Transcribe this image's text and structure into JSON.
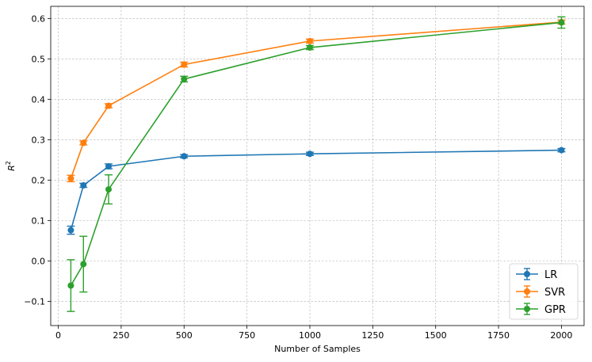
{
  "chart_data": {
    "type": "line",
    "title": "",
    "xlabel": "Number of Samples",
    "ylabel": "R",
    "ylabel_superscript": "2",
    "xlim": [
      -30,
      2090
    ],
    "ylim": [
      -0.16,
      0.63
    ],
    "grid": true,
    "legend_position": "lower-right",
    "x_ticks": [
      0,
      250,
      500,
      750,
      1000,
      1250,
      1500,
      1750,
      2000
    ],
    "x_tick_labels": [
      "0",
      "250",
      "500",
      "750",
      "1000",
      "1250",
      "1500",
      "1750",
      "2000"
    ],
    "y_ticks": [
      -0.1,
      0.0,
      0.1,
      0.2,
      0.3,
      0.4,
      0.5,
      0.6
    ],
    "y_tick_labels": [
      "−0.1",
      "0.0",
      "0.1",
      "0.2",
      "0.3",
      "0.4",
      "0.5",
      "0.6"
    ],
    "series": [
      {
        "name": "LR",
        "color": "#1f77b4",
        "x": [
          50,
          100,
          200,
          500,
          1000,
          2000
        ],
        "y": [
          0.076,
          0.187,
          0.234,
          0.259,
          0.265,
          0.274
        ],
        "err": [
          0.01,
          0.005,
          0.006,
          0.004,
          0.004,
          0.004
        ]
      },
      {
        "name": "SVR",
        "color": "#ff7f0e",
        "x": [
          50,
          100,
          200,
          500,
          1000,
          2000
        ],
        "y": [
          0.204,
          0.292,
          0.384,
          0.486,
          0.544,
          0.591
        ],
        "err": [
          0.008,
          0.005,
          0.005,
          0.006,
          0.005,
          0.005
        ]
      },
      {
        "name": "GPR",
        "color": "#2ca02c",
        "x": [
          50,
          100,
          200,
          500,
          1000,
          2000
        ],
        "y": [
          -0.061,
          -0.008,
          0.177,
          0.45,
          0.528,
          0.59
        ],
        "err": [
          0.064,
          0.069,
          0.036,
          0.007,
          0.005,
          0.014
        ]
      }
    ]
  }
}
